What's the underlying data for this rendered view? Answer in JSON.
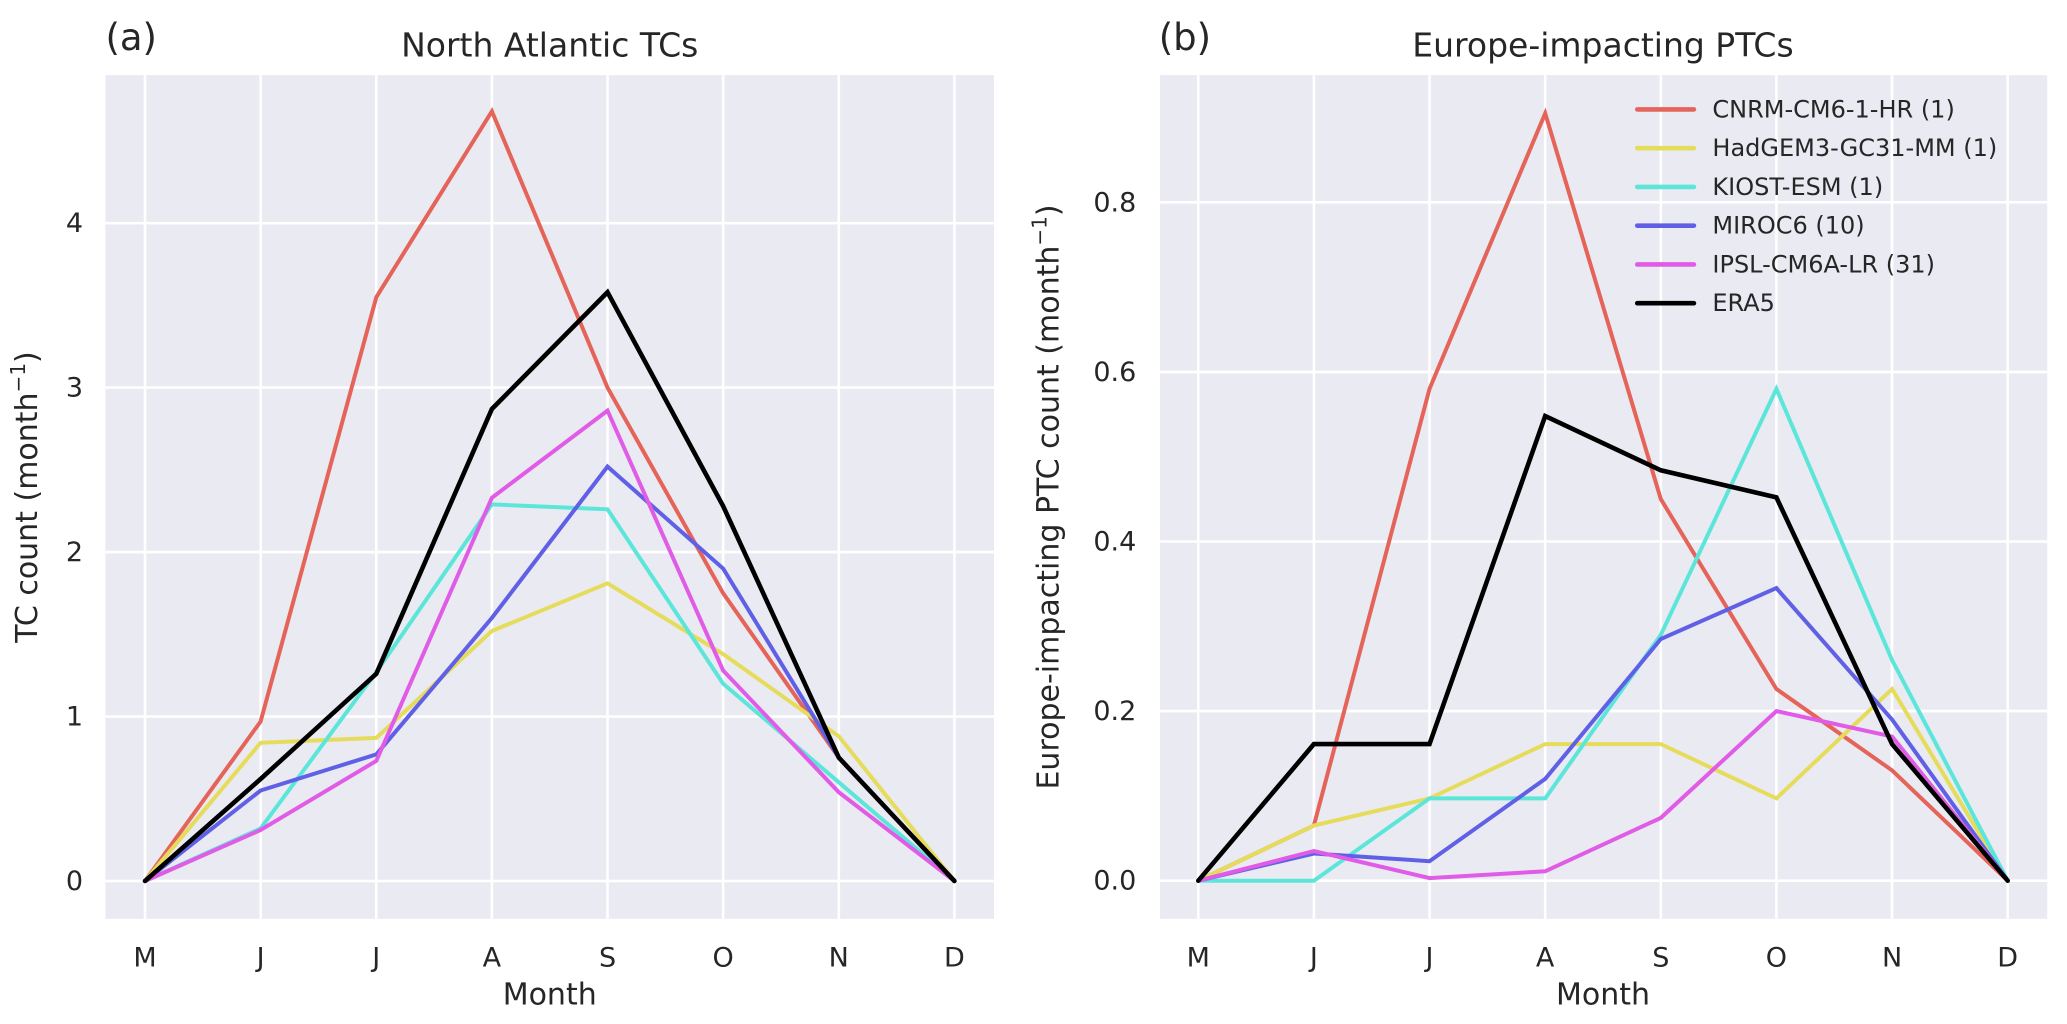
{
  "chart_data": [
    {
      "type": "line",
      "panel_label": "(a)",
      "title": "North Atlantic TCs",
      "xlabel": "Month",
      "ylabel_main": "TC count (month",
      "ylabel_sup": "−1",
      "ylabel_close": ")",
      "categories": [
        "M",
        "J",
        "J",
        "A",
        "S",
        "O",
        "N",
        "D"
      ],
      "ylim": [
        -0.23,
        4.9
      ],
      "yticks": [
        0,
        1,
        2,
        3,
        4
      ],
      "ytick_labels": [
        "0",
        "1",
        "2",
        "3",
        "4"
      ],
      "grid": true,
      "series": [
        {
          "name": "CNRM-CM6-1-HR (1)",
          "color": "#e5645a",
          "values": [
            0,
            0.97,
            3.55,
            4.68,
            3.0,
            1.75,
            0.75,
            0
          ]
        },
        {
          "name": "HadGEM3-GC31-MM (1)",
          "color": "#e6dc5c",
          "values": [
            0,
            0.84,
            0.87,
            1.52,
            1.81,
            1.38,
            0.88,
            0
          ]
        },
        {
          "name": "KIOST-ESM (1)",
          "color": "#5ce6da",
          "values": [
            0,
            0.32,
            1.27,
            2.29,
            2.26,
            1.2,
            0.6,
            0
          ]
        },
        {
          "name": "MIROC6 (10)",
          "color": "#6060e6",
          "values": [
            0,
            0.55,
            0.77,
            1.6,
            2.52,
            1.9,
            0.75,
            0
          ]
        },
        {
          "name": "IPSL-CM6A-LR (31)",
          "color": "#e05ce6",
          "values": [
            0,
            0.31,
            0.73,
            2.33,
            2.86,
            1.28,
            0.54,
            0
          ]
        },
        {
          "name": "ERA5",
          "color": "#000000",
          "values": [
            0,
            0.62,
            1.26,
            2.87,
            3.58,
            2.28,
            0.75,
            0
          ]
        }
      ]
    },
    {
      "type": "line",
      "panel_label": "(b)",
      "title": "Europe-impacting PTCs",
      "xlabel": "Month",
      "ylabel_main": "Europe-impacting PTC count (month",
      "ylabel_sup": "−1",
      "ylabel_close": ")",
      "categories": [
        "M",
        "J",
        "J",
        "A",
        "S",
        "O",
        "N",
        "D"
      ],
      "ylim": [
        -0.045,
        0.95
      ],
      "yticks": [
        0,
        0.2,
        0.4,
        0.6,
        0.8
      ],
      "ytick_labels": [
        "0.0",
        "0.2",
        "0.4",
        "0.6",
        "0.8"
      ],
      "grid": true,
      "legend_position": "top-right",
      "series": [
        {
          "name": "CNRM-CM6-1-HR (1)",
          "color": "#e5645a",
          "values": [
            0,
            0.065,
            0.58,
            0.905,
            0.45,
            0.226,
            0.13,
            0
          ]
        },
        {
          "name": "HadGEM3-GC31-MM (1)",
          "color": "#e6dc5c",
          "values": [
            0,
            0.065,
            0.097,
            0.161,
            0.161,
            0.097,
            0.226,
            0
          ]
        },
        {
          "name": "KIOST-ESM (1)",
          "color": "#5ce6da",
          "values": [
            0,
            0,
            0.097,
            0.097,
            0.29,
            0.58,
            0.26,
            0
          ]
        },
        {
          "name": "MIROC6 (10)",
          "color": "#6060e6",
          "values": [
            0,
            0.032,
            0.023,
            0.12,
            0.285,
            0.345,
            0.19,
            0
          ]
        },
        {
          "name": "IPSL-CM6A-LR (31)",
          "color": "#e05ce6",
          "values": [
            0,
            0.035,
            0.003,
            0.011,
            0.074,
            0.2,
            0.17,
            0
          ]
        },
        {
          "name": "ERA5",
          "color": "#000000",
          "values": [
            0,
            0.161,
            0.161,
            0.548,
            0.484,
            0.452,
            0.161,
            0
          ]
        }
      ]
    }
  ],
  "style": {
    "axes_bg": "#eaeaf2",
    "grid_color": "#ffffff",
    "text_color": "#262626"
  }
}
